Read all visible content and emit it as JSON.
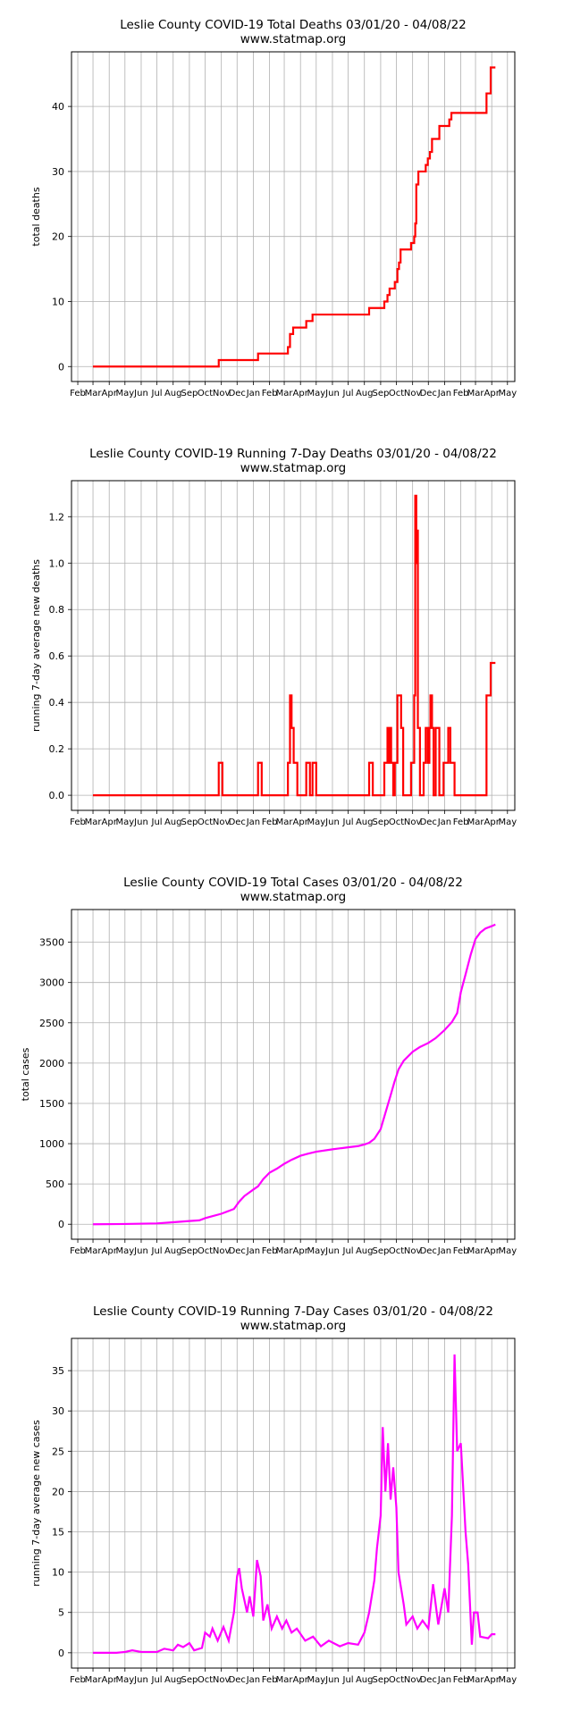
{
  "months": [
    "Feb",
    "Mar",
    "Apr",
    "May",
    "Jun",
    "Jul",
    "Aug",
    "Sep",
    "Oct",
    "Nov",
    "Dec",
    "Jan",
    "Feb",
    "Mar",
    "Apr",
    "May",
    "Jun",
    "Jul",
    "Aug",
    "Sep",
    "Oct",
    "Nov",
    "Dec",
    "Jan",
    "Feb",
    "Mar",
    "Apr",
    "May"
  ],
  "colors": {
    "deaths": "#ff0000",
    "cases": "#ff00ff",
    "grid": "#b0b0b0"
  },
  "chart_data": [
    {
      "type": "line",
      "title": "Leslie County COVID-19 Total Deaths 03/01/20 - 04/08/22",
      "subtitle": "www.statmap.org",
      "ylabel": "total deaths",
      "xlabel": "",
      "ylim": [
        -2.3,
        48.4
      ],
      "yticks": [
        0,
        10,
        20,
        30,
        40
      ],
      "grid": true,
      "color": "deaths",
      "kind": "step",
      "points": [
        [
          "2020-03-01",
          0
        ],
        [
          "2020-10-27",
          0
        ],
        [
          "2020-10-27",
          1
        ],
        [
          "2021-01-10",
          1
        ],
        [
          "2021-01-10",
          2
        ],
        [
          "2021-03-08",
          2
        ],
        [
          "2021-03-08",
          3
        ],
        [
          "2021-03-12",
          3
        ],
        [
          "2021-03-12",
          5
        ],
        [
          "2021-03-18",
          5
        ],
        [
          "2021-03-18",
          6
        ],
        [
          "2021-04-12",
          6
        ],
        [
          "2021-04-12",
          7
        ],
        [
          "2021-04-24",
          7
        ],
        [
          "2021-04-24",
          8
        ],
        [
          "2021-08-10",
          8
        ],
        [
          "2021-08-10",
          9
        ],
        [
          "2021-09-08",
          9
        ],
        [
          "2021-09-08",
          10
        ],
        [
          "2021-09-14",
          10
        ],
        [
          "2021-09-14",
          11
        ],
        [
          "2021-09-18",
          11
        ],
        [
          "2021-09-18",
          12
        ],
        [
          "2021-09-28",
          12
        ],
        [
          "2021-09-28",
          13
        ],
        [
          "2021-10-03",
          13
        ],
        [
          "2021-10-03",
          15
        ],
        [
          "2021-10-06",
          15
        ],
        [
          "2021-10-06",
          16
        ],
        [
          "2021-10-09",
          16
        ],
        [
          "2021-10-09",
          18
        ],
        [
          "2021-10-29",
          18
        ],
        [
          "2021-10-29",
          19
        ],
        [
          "2021-11-04",
          19
        ],
        [
          "2021-11-04",
          20
        ],
        [
          "2021-11-06",
          20
        ],
        [
          "2021-11-06",
          22
        ],
        [
          "2021-11-08",
          22
        ],
        [
          "2021-11-08",
          28
        ],
        [
          "2021-11-12",
          28
        ],
        [
          "2021-11-12",
          30
        ],
        [
          "2021-11-26",
          30
        ],
        [
          "2021-11-26",
          31
        ],
        [
          "2021-11-30",
          31
        ],
        [
          "2021-11-30",
          32
        ],
        [
          "2021-12-04",
          32
        ],
        [
          "2021-12-04",
          33
        ],
        [
          "2021-12-08",
          33
        ],
        [
          "2021-12-08",
          35
        ],
        [
          "2021-12-22",
          35
        ],
        [
          "2021-12-22",
          37
        ],
        [
          "2022-01-10",
          37
        ],
        [
          "2022-01-10",
          38
        ],
        [
          "2022-01-14",
          38
        ],
        [
          "2022-01-14",
          39
        ],
        [
          "2022-03-22",
          39
        ],
        [
          "2022-03-22",
          42
        ],
        [
          "2022-03-30",
          42
        ],
        [
          "2022-03-30",
          46
        ],
        [
          "2022-04-08",
          46
        ]
      ]
    },
    {
      "type": "line",
      "title": "Leslie County COVID-19 Running 7-Day Deaths 03/01/20 - 04/08/22",
      "subtitle": "www.statmap.org",
      "ylabel": "running 7-day average new deaths",
      "xlabel": "",
      "ylim": [
        -0.065,
        1.355
      ],
      "yticks": [
        0.0,
        0.2,
        0.4,
        0.6,
        0.8,
        1.0,
        1.2
      ],
      "grid": true,
      "color": "deaths",
      "kind": "step",
      "points": [
        [
          "2020-03-01",
          0
        ],
        [
          "2020-10-27",
          0
        ],
        [
          "2020-10-27",
          0.14
        ],
        [
          "2020-11-03",
          0.14
        ],
        [
          "2020-11-03",
          0
        ],
        [
          "2021-01-10",
          0
        ],
        [
          "2021-01-10",
          0.14
        ],
        [
          "2021-01-17",
          0.14
        ],
        [
          "2021-01-17",
          0
        ],
        [
          "2021-03-08",
          0
        ],
        [
          "2021-03-08",
          0.14
        ],
        [
          "2021-03-12",
          0.14
        ],
        [
          "2021-03-12",
          0.43
        ],
        [
          "2021-03-15",
          0.43
        ],
        [
          "2021-03-15",
          0.29
        ],
        [
          "2021-03-19",
          0.29
        ],
        [
          "2021-03-19",
          0.14
        ],
        [
          "2021-03-26",
          0.14
        ],
        [
          "2021-03-26",
          0
        ],
        [
          "2021-04-12",
          0
        ],
        [
          "2021-04-12",
          0.14
        ],
        [
          "2021-04-19",
          0.14
        ],
        [
          "2021-04-19",
          0
        ],
        [
          "2021-04-24",
          0
        ],
        [
          "2021-04-24",
          0.14
        ],
        [
          "2021-05-01",
          0.14
        ],
        [
          "2021-05-01",
          0
        ],
        [
          "2021-08-10",
          0
        ],
        [
          "2021-08-10",
          0.14
        ],
        [
          "2021-08-17",
          0.14
        ],
        [
          "2021-08-17",
          0
        ],
        [
          "2021-09-08",
          0
        ],
        [
          "2021-09-08",
          0.14
        ],
        [
          "2021-09-14",
          0.14
        ],
        [
          "2021-09-14",
          0.29
        ],
        [
          "2021-09-16",
          0.29
        ],
        [
          "2021-09-16",
          0.14
        ],
        [
          "2021-09-18",
          0.14
        ],
        [
          "2021-09-18",
          0.29
        ],
        [
          "2021-09-21",
          0.29
        ],
        [
          "2021-09-21",
          0.14
        ],
        [
          "2021-09-25",
          0.14
        ],
        [
          "2021-09-25",
          0
        ],
        [
          "2021-09-28",
          0
        ],
        [
          "2021-09-28",
          0.14
        ],
        [
          "2021-10-03",
          0.14
        ],
        [
          "2021-10-03",
          0.43
        ],
        [
          "2021-10-10",
          0.43
        ],
        [
          "2021-10-10",
          0.29
        ],
        [
          "2021-10-14",
          0.29
        ],
        [
          "2021-10-14",
          0
        ],
        [
          "2021-10-29",
          0
        ],
        [
          "2021-10-29",
          0.14
        ],
        [
          "2021-11-04",
          0.14
        ],
        [
          "2021-11-04",
          0.43
        ],
        [
          "2021-11-06",
          0.43
        ],
        [
          "2021-11-06",
          1.29
        ],
        [
          "2021-11-08",
          1.29
        ],
        [
          "2021-11-08",
          1.0
        ],
        [
          "2021-11-09",
          1.0
        ],
        [
          "2021-11-09",
          1.14
        ],
        [
          "2021-11-11",
          1.14
        ],
        [
          "2021-11-11",
          0.29
        ],
        [
          "2021-11-15",
          0.29
        ],
        [
          "2021-11-15",
          0
        ],
        [
          "2021-11-22",
          0
        ],
        [
          "2021-11-22",
          0.14
        ],
        [
          "2021-11-26",
          0.14
        ],
        [
          "2021-11-26",
          0.29
        ],
        [
          "2021-11-30",
          0.29
        ],
        [
          "2021-11-30",
          0.14
        ],
        [
          "2021-12-03",
          0.14
        ],
        [
          "2021-12-03",
          0.29
        ],
        [
          "2021-12-05",
          0.29
        ],
        [
          "2021-12-05",
          0.43
        ],
        [
          "2021-12-08",
          0.43
        ],
        [
          "2021-12-08",
          0.29
        ],
        [
          "2021-12-11",
          0.29
        ],
        [
          "2021-12-11",
          0
        ],
        [
          "2021-12-15",
          0
        ],
        [
          "2021-12-15",
          0.29
        ],
        [
          "2021-12-22",
          0.29
        ],
        [
          "2021-12-22",
          0
        ],
        [
          "2021-12-30",
          0
        ],
        [
          "2021-12-30",
          0.14
        ],
        [
          "2022-01-08",
          0.14
        ],
        [
          "2022-01-08",
          0.29
        ],
        [
          "2022-01-12",
          0.29
        ],
        [
          "2022-01-12",
          0.14
        ],
        [
          "2022-01-20",
          0.14
        ],
        [
          "2022-01-20",
          0
        ],
        [
          "2022-03-22",
          0
        ],
        [
          "2022-03-22",
          0.43
        ],
        [
          "2022-03-30",
          0.43
        ],
        [
          "2022-03-30",
          0.57
        ],
        [
          "2022-04-08",
          0.57
        ]
      ]
    },
    {
      "type": "line",
      "title": "Leslie County COVID-19 Total Cases 03/01/20 - 04/08/22",
      "subtitle": "www.statmap.org",
      "ylabel": "total cases",
      "xlabel": "",
      "ylim": [
        -186,
        3906
      ],
      "yticks": [
        0,
        500,
        1000,
        1500,
        2000,
        2500,
        3000,
        3500
      ],
      "grid": true,
      "color": "cases",
      "kind": "line",
      "points": [
        [
          "2020-03-01",
          0
        ],
        [
          "2020-05-01",
          3
        ],
        [
          "2020-07-01",
          10
        ],
        [
          "2020-08-01",
          25
        ],
        [
          "2020-09-01",
          40
        ],
        [
          "2020-09-20",
          48
        ],
        [
          "2020-10-01",
          75
        ],
        [
          "2020-10-15",
          100
        ],
        [
          "2020-11-01",
          130
        ],
        [
          "2020-11-15",
          165
        ],
        [
          "2020-11-25",
          190
        ],
        [
          "2020-12-05",
          280
        ],
        [
          "2020-12-15",
          350
        ],
        [
          "2021-01-01",
          430
        ],
        [
          "2021-01-10",
          470
        ],
        [
          "2021-01-20",
          560
        ],
        [
          "2021-02-01",
          640
        ],
        [
          "2021-02-15",
          690
        ],
        [
          "2021-03-01",
          750
        ],
        [
          "2021-03-15",
          800
        ],
        [
          "2021-04-01",
          850
        ],
        [
          "2021-04-15",
          875
        ],
        [
          "2021-05-01",
          900
        ],
        [
          "2021-06-01",
          930
        ],
        [
          "2021-07-01",
          955
        ],
        [
          "2021-07-20",
          970
        ],
        [
          "2021-08-01",
          990
        ],
        [
          "2021-08-10",
          1010
        ],
        [
          "2021-08-20",
          1060
        ],
        [
          "2021-09-01",
          1180
        ],
        [
          "2021-09-10",
          1380
        ],
        [
          "2021-09-20",
          1600
        ],
        [
          "2021-09-27",
          1760
        ],
        [
          "2021-10-05",
          1920
        ],
        [
          "2021-10-15",
          2030
        ],
        [
          "2021-11-01",
          2140
        ],
        [
          "2021-11-15",
          2200
        ],
        [
          "2021-12-01",
          2250
        ],
        [
          "2021-12-15",
          2310
        ],
        [
          "2022-01-01",
          2410
        ],
        [
          "2022-01-15",
          2510
        ],
        [
          "2022-01-25",
          2620
        ],
        [
          "2022-02-01",
          2880
        ],
        [
          "2022-02-10",
          3100
        ],
        [
          "2022-02-20",
          3350
        ],
        [
          "2022-03-01",
          3540
        ],
        [
          "2022-03-10",
          3620
        ],
        [
          "2022-03-20",
          3670
        ],
        [
          "2022-04-01",
          3700
        ],
        [
          "2022-04-08",
          3720
        ]
      ]
    },
    {
      "type": "line",
      "title": "Leslie County COVID-19 Running 7-Day Cases 03/01/20 - 04/08/22",
      "subtitle": "www.statmap.org",
      "ylabel": "running 7-day average new cases",
      "xlabel": "",
      "ylim": [
        -1.9,
        39.0
      ],
      "yticks": [
        0,
        5,
        10,
        15,
        20,
        25,
        30,
        35
      ],
      "grid": true,
      "color": "cases",
      "kind": "line",
      "points": [
        [
          "2020-03-01",
          0
        ],
        [
          "2020-04-15",
          0
        ],
        [
          "2020-05-01",
          0.1
        ],
        [
          "2020-05-15",
          0.3
        ],
        [
          "2020-06-01",
          0.1
        ],
        [
          "2020-07-01",
          0.1
        ],
        [
          "2020-07-15",
          0.5
        ],
        [
          "2020-08-01",
          0.3
        ],
        [
          "2020-08-10",
          1.0
        ],
        [
          "2020-08-20",
          0.7
        ],
        [
          "2020-09-01",
          1.2
        ],
        [
          "2020-09-10",
          0.3
        ],
        [
          "2020-09-25",
          0.6
        ],
        [
          "2020-10-01",
          2.5
        ],
        [
          "2020-10-10",
          2.0
        ],
        [
          "2020-10-15",
          3.0
        ],
        [
          "2020-10-25",
          1.5
        ],
        [
          "2020-11-05",
          3.2
        ],
        [
          "2020-11-15",
          1.5
        ],
        [
          "2020-11-25",
          5.0
        ],
        [
          "2020-12-01",
          9.5
        ],
        [
          "2020-12-05",
          10.5
        ],
        [
          "2020-12-10",
          8.0
        ],
        [
          "2020-12-20",
          5.0
        ],
        [
          "2020-12-25",
          7.0
        ],
        [
          "2021-01-01",
          4.5
        ],
        [
          "2021-01-08",
          11.5
        ],
        [
          "2021-01-15",
          9.5
        ],
        [
          "2021-01-20",
          4.0
        ],
        [
          "2021-01-28",
          6.0
        ],
        [
          "2021-02-05",
          3.0
        ],
        [
          "2021-02-15",
          4.5
        ],
        [
          "2021-02-25",
          3.0
        ],
        [
          "2021-03-05",
          4.0
        ],
        [
          "2021-03-15",
          2.5
        ],
        [
          "2021-03-25",
          3.0
        ],
        [
          "2021-04-10",
          1.5
        ],
        [
          "2021-04-25",
          2.0
        ],
        [
          "2021-05-10",
          0.8
        ],
        [
          "2021-05-25",
          1.5
        ],
        [
          "2021-06-15",
          0.8
        ],
        [
          "2021-07-01",
          1.2
        ],
        [
          "2021-07-20",
          1.0
        ],
        [
          "2021-08-01",
          2.5
        ],
        [
          "2021-08-10",
          5.0
        ],
        [
          "2021-08-20",
          9.0
        ],
        [
          "2021-08-25",
          13.0
        ],
        [
          "2021-09-01",
          17.0
        ],
        [
          "2021-09-05",
          28.0
        ],
        [
          "2021-09-10",
          20.0
        ],
        [
          "2021-09-15",
          26.0
        ],
        [
          "2021-09-20",
          19.0
        ],
        [
          "2021-09-25",
          23.0
        ],
        [
          "2021-10-01",
          18.0
        ],
        [
          "2021-10-05",
          10.0
        ],
        [
          "2021-10-15",
          6.0
        ],
        [
          "2021-10-20",
          3.5
        ],
        [
          "2021-11-01",
          4.5
        ],
        [
          "2021-11-10",
          3.0
        ],
        [
          "2021-11-20",
          4.0
        ],
        [
          "2021-12-01",
          3.0
        ],
        [
          "2021-12-10",
          8.5
        ],
        [
          "2021-12-20",
          3.5
        ],
        [
          "2022-01-01",
          8.0
        ],
        [
          "2022-01-08",
          5.0
        ],
        [
          "2022-01-15",
          17.0
        ],
        [
          "2022-01-20",
          37.0
        ],
        [
          "2022-01-25",
          25.0
        ],
        [
          "2022-02-01",
          26.0
        ],
        [
          "2022-02-10",
          15.0
        ],
        [
          "2022-02-15",
          11.0
        ],
        [
          "2022-02-22",
          1.0
        ],
        [
          "2022-02-26",
          5.0
        ],
        [
          "2022-03-05",
          5.0
        ],
        [
          "2022-03-10",
          2.0
        ],
        [
          "2022-03-25",
          1.8
        ],
        [
          "2022-04-01",
          2.3
        ],
        [
          "2022-04-08",
          2.3
        ]
      ]
    }
  ]
}
